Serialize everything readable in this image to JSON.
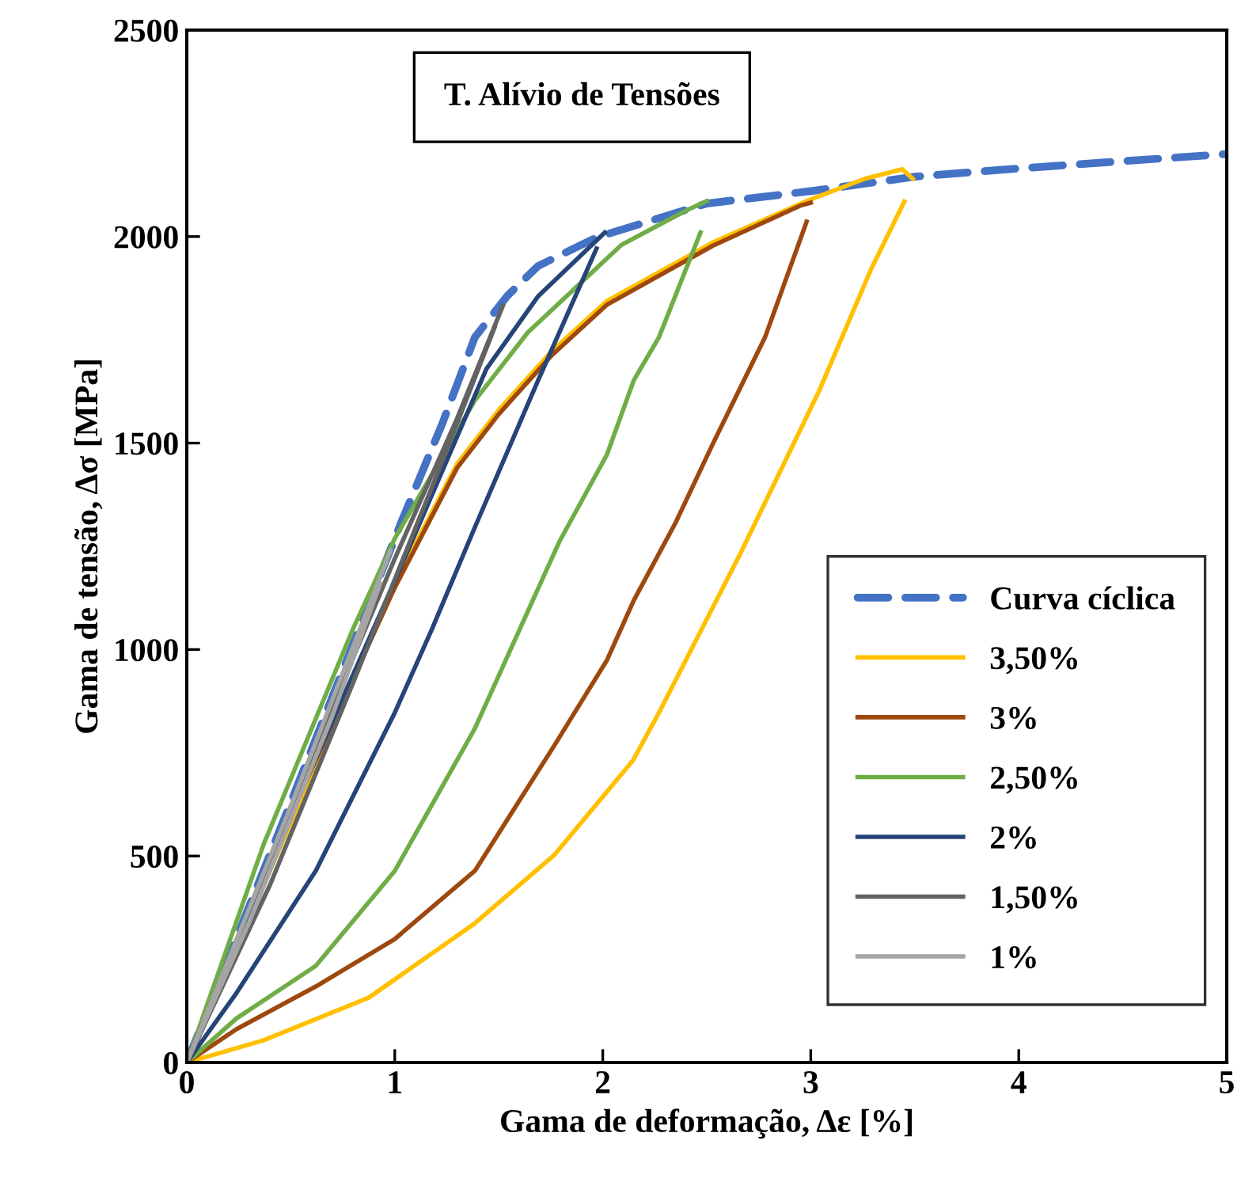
{
  "chart_data": {
    "type": "line",
    "title": "T. Alívio de Tensões",
    "xlabel": "Gama de deformação, Δε [%]",
    "ylabel": "Gama de tensão, Δσ [MPa]",
    "xlim": [
      0,
      5
    ],
    "ylim": [
      0,
      2500
    ],
    "xticks": [
      0,
      1,
      2,
      3,
      4,
      5
    ],
    "yticks": [
      0,
      500,
      1000,
      1500,
      2000,
      2500
    ],
    "grid": false,
    "legend": "bottom right",
    "marker": "none",
    "series": [
      {
        "name": "Curva cíclica",
        "color": "#4472c4",
        "line_style": "dashed",
        "x": [
          0,
          0.5,
          1.03,
          1.23,
          1.385,
          1.54,
          1.69,
          1.97,
          2.5,
          3.0,
          3.5,
          4.0,
          5.0
        ],
        "values": [
          0,
          630,
          1307,
          1549,
          1756,
          1856,
          1929,
          1998,
          2080,
          2110,
          2145,
          2165,
          2200
        ]
      },
      {
        "name": "3,50%",
        "color": "#ffc000",
        "line_style": "solid",
        "x": [
          0,
          1.0,
          1.3,
          1.5,
          1.75,
          2.02,
          2.53,
          2.98,
          3.26,
          3.44,
          3.49
        ],
        "values": [
          0,
          1160,
          1450,
          1580,
          1720,
          1844,
          1986,
          2086,
          2140,
          2163,
          2140
        ]
      },
      {
        "color": "#ffc000",
        "line_style": "solid",
        "x": [
          0,
          0.37,
          0.875,
          1.385,
          1.766,
          2.146,
          2.27,
          2.66,
          3.04,
          3.29,
          3.45
        ],
        "values": [
          0,
          54,
          157,
          337,
          502,
          732,
          847,
          1231,
          1626,
          1921,
          2085
        ]
      },
      {
        "name": "3%",
        "color": "#9e480e",
        "line_style": "solid",
        "x": [
          0,
          0.5,
          1.0,
          1.3,
          1.5,
          1.75,
          2.02,
          2.53,
          2.95,
          3.0
        ],
        "values": [
          0,
          600,
          1150,
          1440,
          1570,
          1710,
          1835,
          1978,
          2075,
          2082
        ]
      },
      {
        "color": "#9e480e",
        "line_style": "solid",
        "x": [
          0,
          0.24,
          0.62,
          1.0,
          1.385,
          1.77,
          2.02,
          2.15,
          2.35,
          2.53,
          2.78,
          2.98
        ],
        "values": [
          0,
          81,
          184,
          299,
          464,
          770,
          974,
          1120,
          1307,
          1499,
          1756,
          2036
        ]
      },
      {
        "name": "2,50%",
        "color": "#70ad47",
        "line_style": "solid",
        "x": [
          0,
          0.37,
          0.8,
          1.0,
          1.385,
          1.64,
          2.09,
          2.4,
          2.5
        ],
        "values": [
          0,
          529,
          1051,
          1269,
          1603,
          1768,
          1980,
          2063,
          2086
        ]
      },
      {
        "color": "#70ad47",
        "line_style": "solid",
        "x": [
          0,
          0.24,
          0.62,
          1.0,
          1.385,
          1.79,
          2.02,
          2.15,
          2.27,
          2.47
        ],
        "values": [
          0,
          107,
          234,
          464,
          809,
          1260,
          1472,
          1653,
          1756,
          2010
        ]
      },
      {
        "name": "2%",
        "color": "#264478",
        "line_style": "solid",
        "x": [
          0,
          0.5,
          1.0,
          1.44,
          1.69,
          2.01
        ],
        "values": [
          0,
          600,
          1166,
          1679,
          1856,
          2010
        ]
      },
      {
        "color": "#264478",
        "line_style": "solid",
        "x": [
          0,
          0.24,
          0.62,
          1.0,
          1.18,
          1.385,
          1.69,
          1.97
        ],
        "values": [
          0,
          169,
          464,
          847,
          1051,
          1296,
          1653,
          1971
        ]
      },
      {
        "name": "1,50%",
        "color": "#636363",
        "line_style": "solid",
        "x": [
          0,
          0.5,
          1.0,
          1.3,
          1.52
        ],
        "values": [
          0,
          620,
          1220,
          1560,
          1833
        ]
      },
      {
        "color": "#636363",
        "line_style": "solid",
        "x": [
          0,
          0.4,
          0.8,
          1.2,
          1.48
        ],
        "values": [
          0,
          430,
          920,
          1420,
          1780
        ]
      },
      {
        "name": "1%",
        "color": "#a5a5a5",
        "line_style": "solid",
        "x": [
          0,
          0.5,
          0.98
        ],
        "values": [
          0,
          620,
          1240
        ]
      },
      {
        "color": "#a5a5a5",
        "line_style": "solid",
        "x": [
          0,
          0.3,
          0.7,
          0.93
        ],
        "values": [
          0,
          340,
          840,
          1160
        ]
      }
    ]
  }
}
